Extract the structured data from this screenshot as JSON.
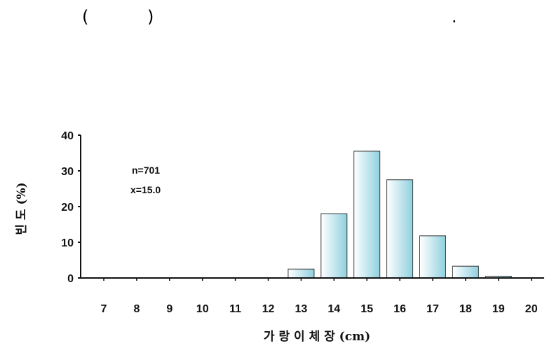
{
  "header_text": {
    "left_paren": "(",
    "right_paren": ")",
    "period": "."
  },
  "chart_data": {
    "type": "bar",
    "categories": [
      "7",
      "8",
      "9",
      "10",
      "11",
      "12",
      "13",
      "14",
      "15",
      "16",
      "17",
      "18",
      "19",
      "20"
    ],
    "values": [
      0,
      0,
      0,
      0,
      0,
      0,
      2.5,
      18,
      35.5,
      27.5,
      11.8,
      3.3,
      0.5,
      0
    ],
    "xlabel": "가 랑 이 체 장 (cm)",
    "ylabel": "빈 도 (%)",
    "ylim": [
      0,
      40
    ],
    "yticks": [
      0,
      10,
      20,
      30,
      40
    ],
    "annotations": [
      "n=701",
      "x=15.0"
    ],
    "bar_color_light": "#ffffff",
    "bar_color_dark": "#8fd0df",
    "grid": false,
    "legend": "none"
  }
}
